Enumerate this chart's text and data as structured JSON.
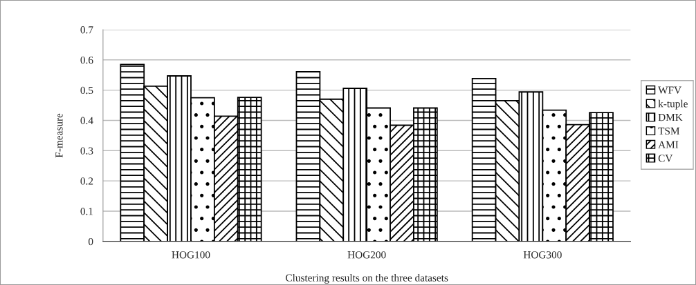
{
  "chart_data": {
    "type": "bar",
    "xlabel": "Clustering results on the three datasets",
    "ylabel": "F-measure",
    "categories": [
      "HOG100",
      "HOG200",
      "HOG300"
    ],
    "series": [
      {
        "name": "WFV",
        "color": "#000000",
        "values": [
          0.585,
          0.561,
          0.538
        ]
      },
      {
        "name": "k-tuple",
        "color": "#000000",
        "values": [
          0.513,
          0.47,
          0.465
        ]
      },
      {
        "name": "DMK",
        "color": "#000000",
        "values": [
          0.547,
          0.506,
          0.494
        ]
      },
      {
        "name": "TSM",
        "color": "#000000",
        "values": [
          0.475,
          0.441,
          0.434
        ]
      },
      {
        "name": "AMI",
        "color": "#000000",
        "values": [
          0.414,
          0.384,
          0.386
        ]
      },
      {
        "name": "CV",
        "color": "#000000",
        "values": [
          0.476,
          0.441,
          0.426
        ]
      }
    ],
    "ylim": [
      0,
      0.7
    ],
    "yticks": [
      0,
      0.1,
      0.2,
      0.3,
      0.4,
      0.5,
      0.6,
      0.7
    ],
    "grid": "y",
    "legend": "right"
  }
}
